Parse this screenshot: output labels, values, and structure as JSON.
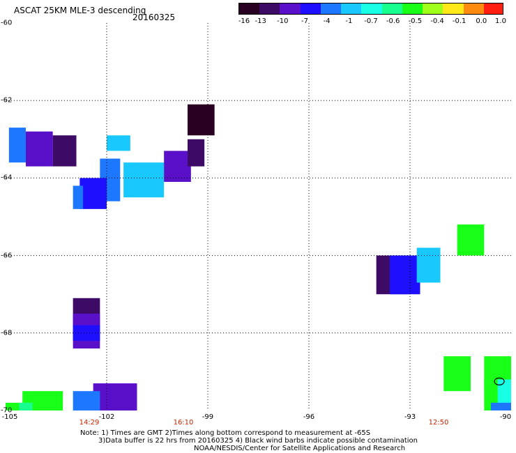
{
  "header": {
    "title": "ASCAT 25KM MLE-3 descending",
    "date": "20160325"
  },
  "colorbar": {
    "labels": [
      "-16",
      "-13",
      "-10",
      "-7",
      "-4",
      "-1",
      "-0.7",
      "-0.6",
      "-0.5",
      "-0.4",
      "-0.1",
      "0.0",
      "1.0"
    ],
    "colors": [
      "#2a0022",
      "#3d0a66",
      "#5a10c8",
      "#1e10ff",
      "#1e78ff",
      "#18c8ff",
      "#18ffe6",
      "#18ff90",
      "#18ff18",
      "#a0ff18",
      "#ffe818",
      "#ff8a10",
      "#ff1e10"
    ]
  },
  "axes": {
    "lat_labels": [
      "-60",
      "-62",
      "-64",
      "-66",
      "-68",
      "-70"
    ],
    "lon_labels": [
      "-105",
      "-102",
      "-99",
      "-96",
      "-93",
      "-90"
    ],
    "time_labels": [
      "14:29",
      "16:10",
      "12:50"
    ]
  },
  "notes": [
    "Note: 1) Times are GMT 2)Times along bottom correspond to measurement at -65S",
    "3)Data buffer is 22 hrs from 20160325 4) Black wind barbs indicate possible contamination",
    "NOAA/NESDIS/Center for Satellite Applications and Research"
  ],
  "map_data": {
    "lon_range": [
      -105,
      -90
    ],
    "lat_range": [
      -70,
      -60
    ],
    "cells": [
      {
        "lon": -99.6,
        "lat": -62.1,
        "w": 0.8,
        "h": 0.8,
        "c": "#2a0022"
      },
      {
        "lon": -104.4,
        "lat": -62.8,
        "w": 0.8,
        "h": 0.9,
        "c": "#5a10c8"
      },
      {
        "lon": -104.9,
        "lat": -62.7,
        "w": 0.5,
        "h": 0.9,
        "c": "#1e78ff"
      },
      {
        "lon": -103.6,
        "lat": -62.9,
        "w": 0.7,
        "h": 0.8,
        "c": "#3d0a66"
      },
      {
        "lon": -102.0,
        "lat": -62.9,
        "w": 0.7,
        "h": 0.4,
        "c": "#18c8ff"
      },
      {
        "lon": -102.2,
        "lat": -63.5,
        "w": 0.6,
        "h": 1.1,
        "c": "#1e78ff"
      },
      {
        "lon": -101.5,
        "lat": -63.6,
        "w": 1.2,
        "h": 0.9,
        "c": "#18c8ff"
      },
      {
        "lon": -102.8,
        "lat": -64.0,
        "w": 0.8,
        "h": 0.8,
        "c": "#1e10ff"
      },
      {
        "lon": -103.0,
        "lat": -64.2,
        "w": 0.3,
        "h": 0.6,
        "c": "#1e78ff"
      },
      {
        "lon": -100.3,
        "lat": -63.3,
        "w": 0.8,
        "h": 0.8,
        "c": "#5a10c8"
      },
      {
        "lon": -99.6,
        "lat": -63.0,
        "w": 0.5,
        "h": 0.7,
        "c": "#3d0a66"
      },
      {
        "lon": -94.0,
        "lat": -66.0,
        "w": 1.0,
        "h": 1.0,
        "c": "#3d0a66"
      },
      {
        "lon": -93.6,
        "lat": -66.0,
        "w": 0.9,
        "h": 1.0,
        "c": "#1e10ff"
      },
      {
        "lon": -92.8,
        "lat": -65.8,
        "w": 0.7,
        "h": 0.9,
        "c": "#18c8ff"
      },
      {
        "lon": -91.6,
        "lat": -65.2,
        "w": 0.8,
        "h": 0.8,
        "c": "#18ff18"
      },
      {
        "lon": -103.0,
        "lat": -67.1,
        "w": 0.8,
        "h": 0.7,
        "c": "#3d0a66"
      },
      {
        "lon": -103.0,
        "lat": -67.5,
        "w": 0.8,
        "h": 0.9,
        "c": "#5a10c8"
      },
      {
        "lon": -103.0,
        "lat": -67.8,
        "w": 0.8,
        "h": 0.4,
        "c": "#1e10ff"
      },
      {
        "lon": -92.0,
        "lat": -68.6,
        "w": 0.8,
        "h": 0.9,
        "c": "#18ff18"
      },
      {
        "lon": -90.8,
        "lat": -68.6,
        "w": 0.8,
        "h": 0.9,
        "c": "#18ff18"
      },
      {
        "lon": -90.8,
        "lat": -69.2,
        "w": 1.2,
        "h": 1.1,
        "c": "#18ff18"
      },
      {
        "lon": -90.4,
        "lat": -69.2,
        "w": 0.8,
        "h": 0.9,
        "c": "#18ffe6"
      },
      {
        "lon": -90.6,
        "lat": -69.8,
        "w": 1.2,
        "h": 0.8,
        "c": "#1e78ff"
      },
      {
        "lon": -102.4,
        "lat": -69.3,
        "w": 1.3,
        "h": 1.0,
        "c": "#5a10c8"
      },
      {
        "lon": -103.0,
        "lat": -69.5,
        "w": 0.8,
        "h": 1.2,
        "c": "#1e78ff"
      },
      {
        "lon": -104.5,
        "lat": -69.5,
        "w": 1.2,
        "h": 1.0,
        "c": "#18ff18"
      },
      {
        "lon": -105.0,
        "lat": -69.8,
        "w": 1.0,
        "h": 1.0,
        "c": "#18ff18"
      },
      {
        "lon": -104.6,
        "lat": -69.8,
        "w": 0.4,
        "h": 0.8,
        "c": "#18ff90"
      }
    ]
  }
}
